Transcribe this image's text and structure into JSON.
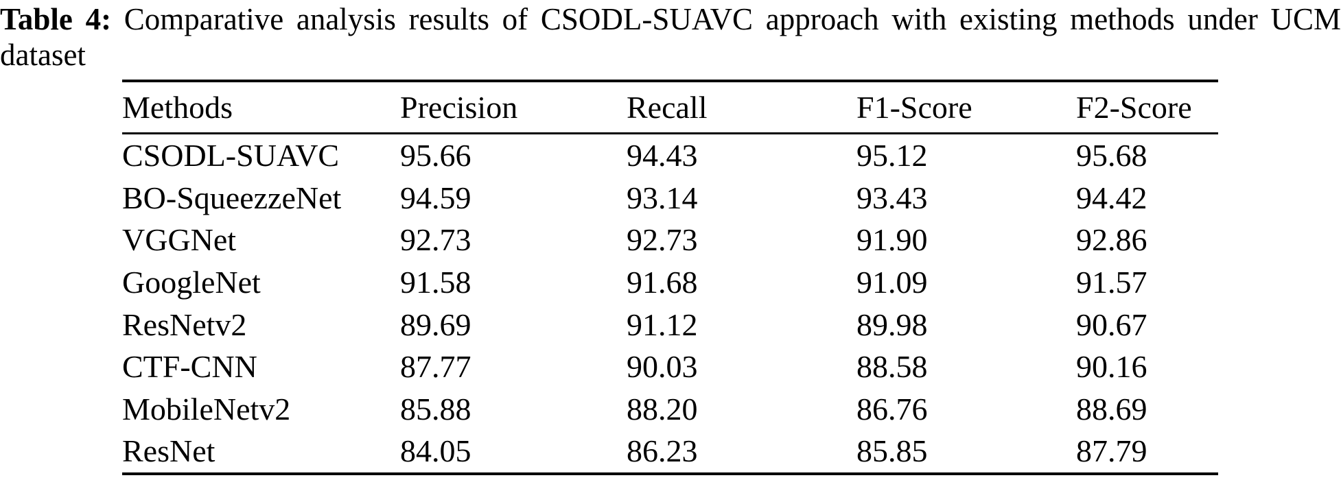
{
  "page": {
    "background_color": "#ffffff",
    "text_color": "#000000"
  },
  "caption": {
    "label": "Table 4:",
    "text": "Comparative analysis results of CSODL-SUAVC approach with existing methods under UCM dataset"
  },
  "table": {
    "columns": [
      "Methods",
      "Precision",
      "Recall",
      "F1-Score",
      "F2-Score"
    ],
    "rows": [
      {
        "method": "CSODL-SUAVC",
        "precision": "95.66",
        "recall": "94.43",
        "f1": "95.12",
        "f2": "95.68"
      },
      {
        "method": "BO-SqueezzeNet",
        "precision": "94.59",
        "recall": "93.14",
        "f1": "93.43",
        "f2": "94.42"
      },
      {
        "method": "VGGNet",
        "precision": "92.73",
        "recall": "92.73",
        "f1": "91.90",
        "f2": "92.86"
      },
      {
        "method": "GoogleNet",
        "precision": "91.58",
        "recall": "91.68",
        "f1": "91.09",
        "f2": "91.57"
      },
      {
        "method": "ResNetv2",
        "precision": "89.69",
        "recall": "91.12",
        "f1": "89.98",
        "f2": "90.67"
      },
      {
        "method": "CTF-CNN",
        "precision": "87.77",
        "recall": "90.03",
        "f1": "88.58",
        "f2": "90.16"
      },
      {
        "method": "MobileNetv2",
        "precision": "85.88",
        "recall": "88.20",
        "f1": "86.76",
        "f2": "88.69"
      },
      {
        "method": "ResNet",
        "precision": "84.05",
        "recall": "86.23",
        "f1": "85.85",
        "f2": "87.79"
      }
    ]
  },
  "chart_data": {
    "type": "table",
    "title": "Table 4: Comparative analysis results of CSODL-SUAVC approach with existing methods under UCM dataset",
    "columns": [
      "Methods",
      "Precision",
      "Recall",
      "F1-Score",
      "F2-Score"
    ],
    "rows": [
      [
        "CSODL-SUAVC",
        95.66,
        94.43,
        95.12,
        95.68
      ],
      [
        "BO-SqueezzeNet",
        94.59,
        93.14,
        93.43,
        94.42
      ],
      [
        "VGGNet",
        92.73,
        92.73,
        91.9,
        92.86
      ],
      [
        "GoogleNet",
        91.58,
        91.68,
        91.09,
        91.57
      ],
      [
        "ResNetv2",
        89.69,
        91.12,
        89.98,
        90.67
      ],
      [
        "CTF-CNN",
        87.77,
        90.03,
        88.58,
        90.16
      ],
      [
        "MobileNetv2",
        85.88,
        88.2,
        86.76,
        88.69
      ],
      [
        "ResNet",
        84.05,
        86.23,
        85.85,
        87.79
      ]
    ]
  }
}
